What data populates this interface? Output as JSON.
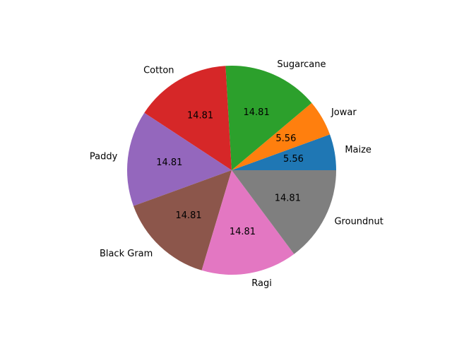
{
  "chart_data": {
    "type": "pie",
    "title": "",
    "start_angle_deg": 0,
    "direction": "counterclockwise",
    "slices": [
      {
        "label": "Maize",
        "value": 5.56,
        "pct_label": "5.56",
        "color": "#1f77b4"
      },
      {
        "label": "Jowar",
        "value": 5.56,
        "pct_label": "5.56",
        "color": "#ff7f0e"
      },
      {
        "label": "Sugarcane",
        "value": 14.81,
        "pct_label": "14.81",
        "color": "#2ca02c"
      },
      {
        "label": "Cotton",
        "value": 14.81,
        "pct_label": "14.81",
        "color": "#d62728"
      },
      {
        "label": "Paddy",
        "value": 14.81,
        "pct_label": "14.81",
        "color": "#9467bd"
      },
      {
        "label": "Black Gram",
        "value": 14.81,
        "pct_label": "14.81",
        "color": "#8c564b"
      },
      {
        "label": "Ragi",
        "value": 14.81,
        "pct_label": "14.81",
        "color": "#e377c2"
      },
      {
        "label": "Groundnut",
        "value": 14.81,
        "pct_label": "14.81",
        "color": "#7f7f7f"
      }
    ]
  }
}
